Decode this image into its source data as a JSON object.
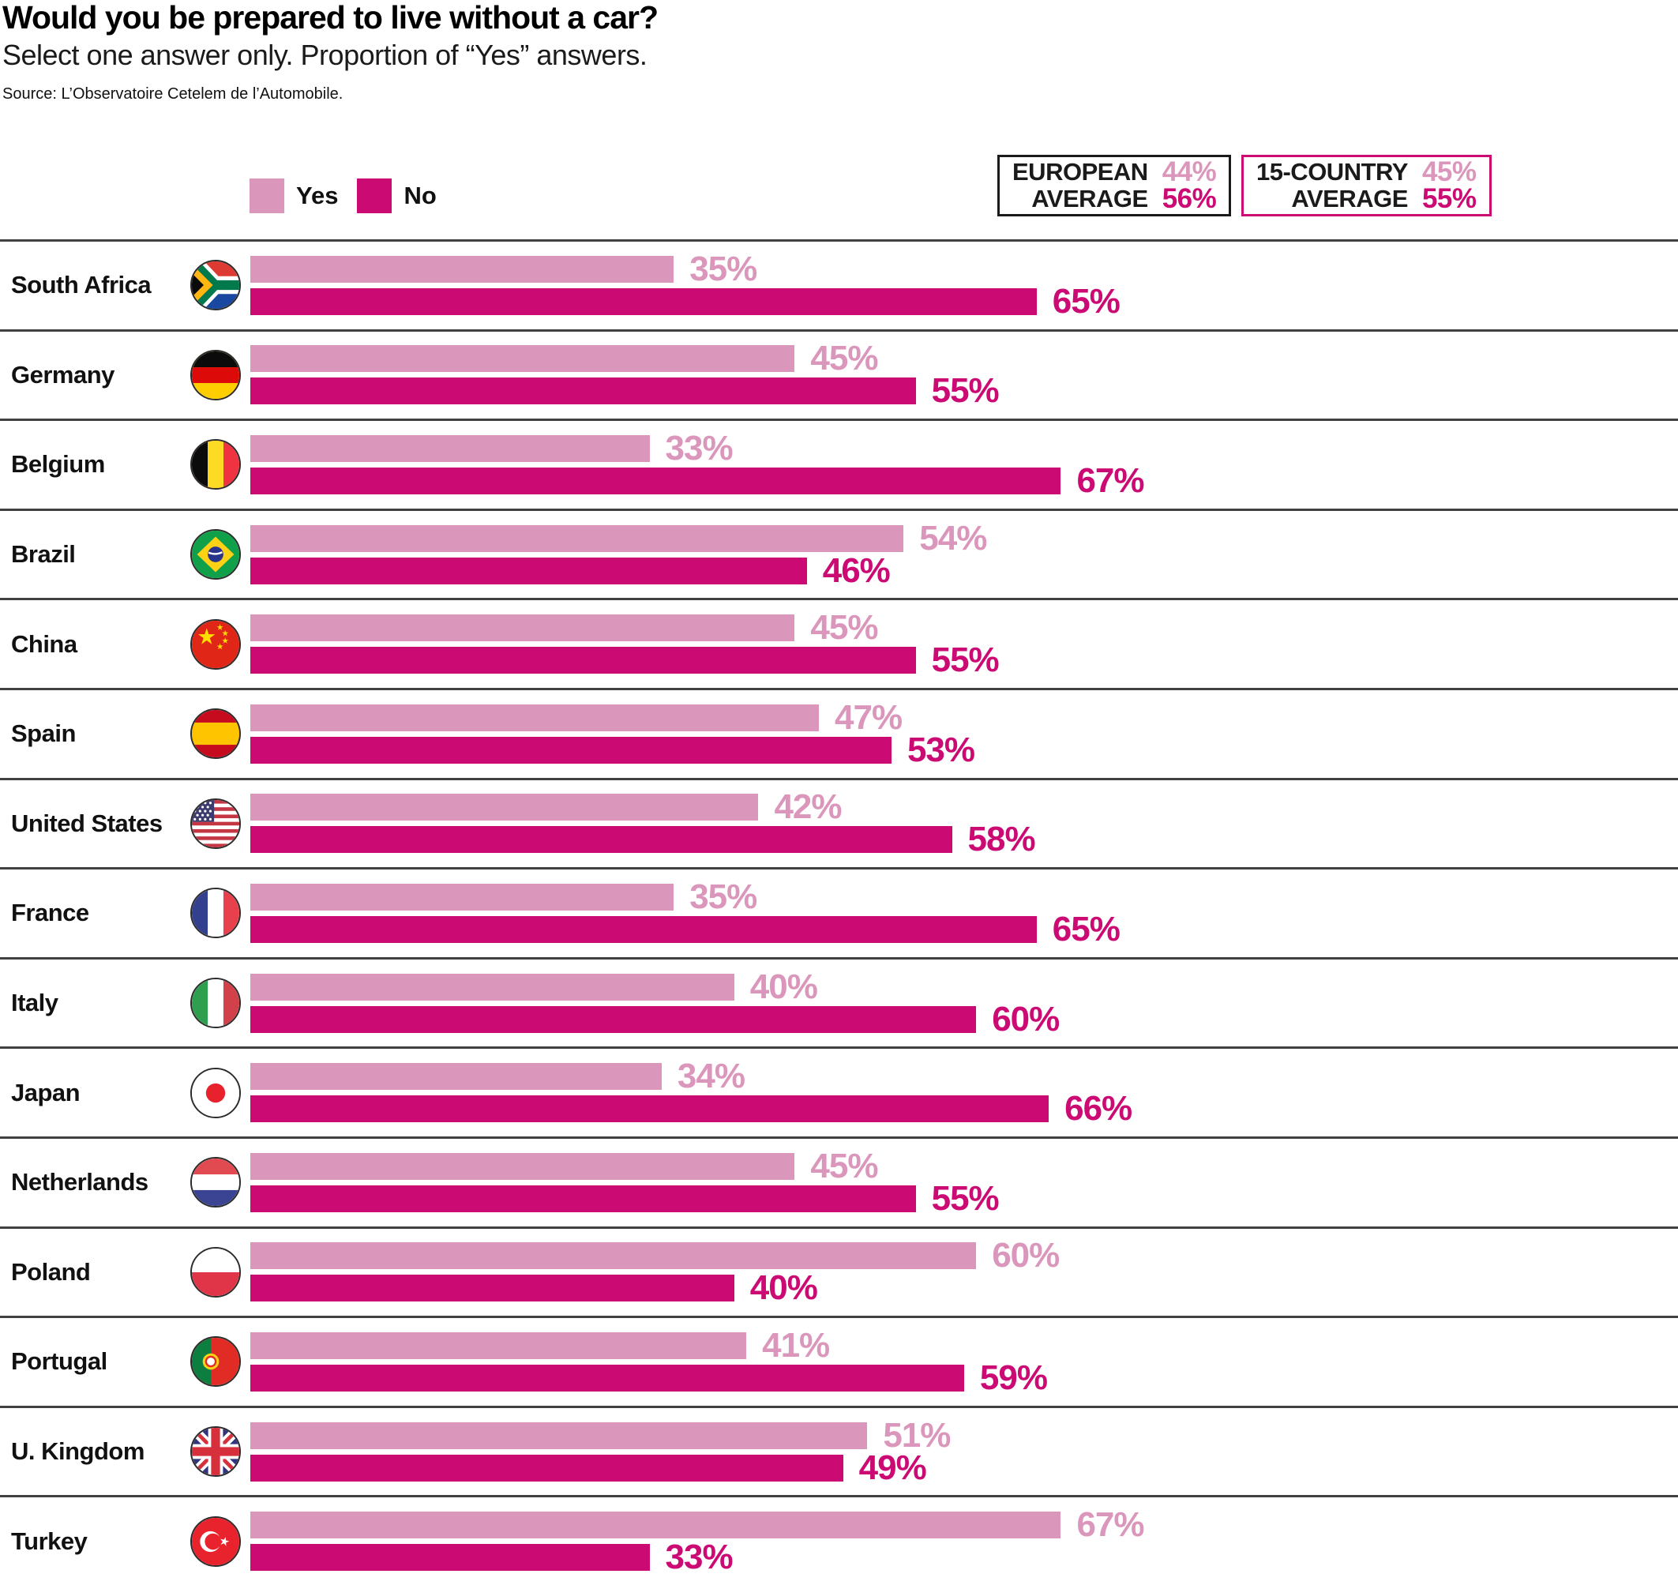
{
  "header": {
    "title": "Would you be prepared to live without a car?",
    "subtitle": "Select one answer only. Proportion of “Yes” answers.",
    "source": "Source: L’Observatoire Cetelem de l’Automobile."
  },
  "legend": {
    "yes": "Yes",
    "no": "No"
  },
  "averages": {
    "european": {
      "line1": "EUROPEAN",
      "line2": "AVERAGE",
      "yes": "44%",
      "no": "56%"
    },
    "fifteen_country": {
      "line1": "15-COUNTRY",
      "line2": "AVERAGE",
      "yes": "45%",
      "no": "55%"
    }
  },
  "colors": {
    "yes": "#db97bb",
    "no": "#cb0a74",
    "separator": "#414042",
    "european_box_border": "#1a1a1a",
    "fifteen_country_box_border": "#cb0a74"
  },
  "chart_data": {
    "type": "bar",
    "orientation": "horizontal",
    "title": "Would you be prepared to live without a car?",
    "subtitle": "Select one answer only. Proportion of “Yes” answers.",
    "source": "Source: L’Observatoire Cetelem de l’Automobile.",
    "unit": "%",
    "xlim": [
      0,
      100
    ],
    "grid": false,
    "legend_position": "top-left",
    "categories": [
      "South Africa",
      "Germany",
      "Belgium",
      "Brazil",
      "China",
      "Spain",
      "United States",
      "France",
      "Italy",
      "Japan",
      "Netherlands",
      "Poland",
      "Portugal",
      "U. Kingdom",
      "Turkey"
    ],
    "flags": [
      "za",
      "de",
      "be",
      "br",
      "cn",
      "es",
      "us",
      "fr",
      "it",
      "jp",
      "nl",
      "pl",
      "pt",
      "gb",
      "tr"
    ],
    "series": [
      {
        "name": "Yes",
        "color": "#db97bb",
        "values": [
          35,
          45,
          33,
          54,
          45,
          47,
          42,
          35,
          40,
          34,
          45,
          60,
          41,
          51,
          67
        ]
      },
      {
        "name": "No",
        "color": "#cb0a74",
        "values": [
          65,
          55,
          67,
          46,
          55,
          53,
          58,
          65,
          60,
          66,
          55,
          40,
          59,
          49,
          33
        ]
      }
    ],
    "averages": [
      {
        "label": "EUROPEAN AVERAGE",
        "yes": 44,
        "no": 56
      },
      {
        "label": "15-COUNTRY AVERAGE",
        "yes": 45,
        "no": 55
      }
    ]
  }
}
